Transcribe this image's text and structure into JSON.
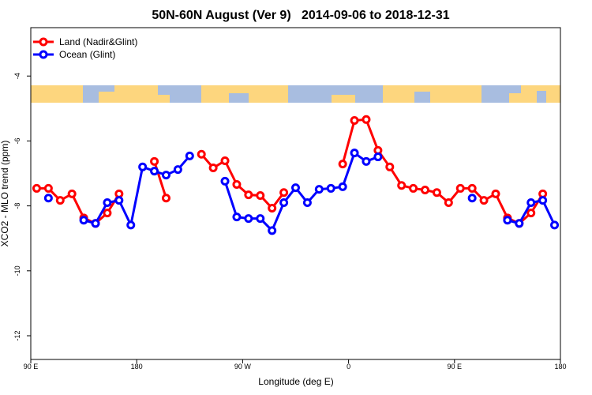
{
  "chart_data": {
    "type": "line",
    "title": "50N-60N August (Ver 9)   2014-09-06 to 2018-12-31",
    "x_label": "Longitude (deg E)",
    "y_label": "XCO2 - MLO trend (ppm)",
    "x": [
      95,
      105,
      115,
      125,
      135,
      145,
      155,
      165,
      175,
      185,
      195,
      205,
      215,
      225,
      235,
      245,
      255,
      265,
      275,
      285,
      295,
      305,
      315,
      325,
      335,
      345,
      355,
      365,
      375,
      385,
      395,
      405,
      415,
      425,
      435,
      445,
      455,
      465,
      475,
      485,
      495,
      505,
      515,
      525,
      535
    ],
    "series": [
      {
        "name": "Land (Nadir&Glint)",
        "color": "#ff0000",
        "values": [
          -7.46,
          -7.46,
          -7.83,
          -7.63,
          -8.37,
          -8.54,
          -8.22,
          -7.63,
          null,
          null,
          -6.63,
          -7.76,
          null,
          null,
          -6.41,
          -6.83,
          -6.61,
          -7.34,
          -7.66,
          -7.68,
          -8.07,
          -7.59,
          null,
          null,
          null,
          null,
          -6.71,
          -5.37,
          -5.34,
          -6.29,
          -6.8,
          -7.37,
          -7.46,
          -7.51,
          -7.59,
          -7.9,
          -7.46,
          -7.46,
          -7.83,
          -7.63,
          -8.37,
          -8.54,
          -8.22,
          -7.63,
          null
        ]
      },
      {
        "name": "Ocean (Glint)",
        "color": "#0000ff",
        "values": [
          null,
          -7.76,
          null,
          null,
          -8.44,
          -8.54,
          -7.9,
          -7.83,
          -8.59,
          -6.8,
          -6.93,
          -7.05,
          -6.88,
          -6.46,
          null,
          null,
          -7.24,
          -8.34,
          -8.39,
          -8.39,
          -8.76,
          -7.9,
          -7.44,
          -7.9,
          -7.49,
          -7.46,
          -7.41,
          -6.37,
          -6.63,
          -6.49,
          null,
          null,
          null,
          null,
          null,
          null,
          null,
          -7.76,
          null,
          null,
          -8.44,
          -8.54,
          -7.9,
          -7.83,
          -8.59
        ]
      }
    ],
    "xlim": [
      90,
      540
    ],
    "xticks": [
      {
        "value": 90,
        "label": "90 E"
      },
      180,
      {
        "value": 270,
        "label": "90 W"
      },
      {
        "value": 360,
        "label": "0"
      },
      {
        "value": 450,
        "label": "90 E"
      },
      {
        "value": 540,
        "label": "180"
      }
    ],
    "ylim": [
      -12.73,
      -2.51
    ],
    "yticks": [
      -4,
      -6,
      -8,
      -10,
      -12
    ],
    "legend": "upper left"
  }
}
